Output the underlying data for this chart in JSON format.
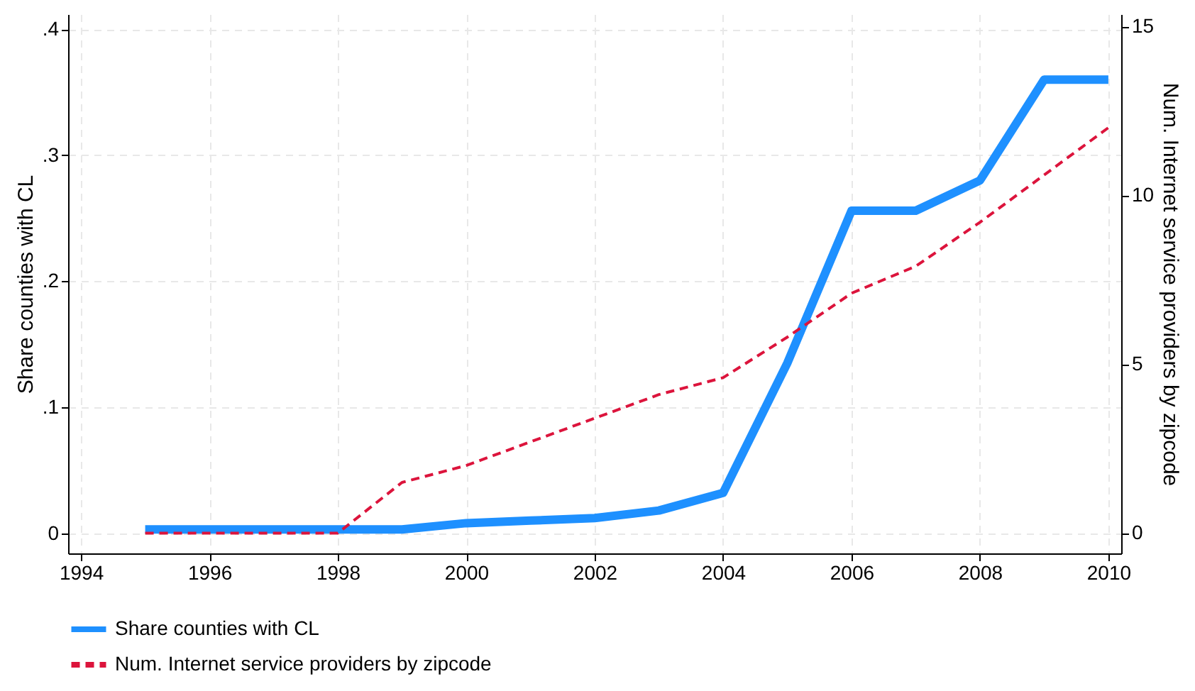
{
  "chart_data": {
    "type": "line",
    "ylabel": "Share counties with CL",
    "y2label": "Num. Internet service providers by zipcode",
    "x": [
      1995,
      1996,
      1997,
      1998,
      1999,
      2000,
      2001,
      2002,
      2003,
      2004,
      2005,
      2006,
      2007,
      2008,
      2009,
      2010
    ],
    "series": [
      {
        "name": "Share counties with CL",
        "color": "#1e90ff",
        "line_style": "solid",
        "values": [
          0.003,
          0.003,
          0.003,
          0.003,
          0.003,
          0.008,
          0.01,
          0.012,
          0.018,
          0.032,
          0.135,
          0.256,
          0.256,
          0.28,
          0.36,
          0.36
        ]
      },
      {
        "name": "Num. Internet service providers by zipcode",
        "color": "#dc143c",
        "line_style": "dashed",
        "axis": "y2",
        "values": [
          0,
          0,
          0,
          0,
          1.5,
          2,
          2.7,
          3.4,
          4.1,
          4.6,
          5.8,
          7.1,
          7.9,
          9.2,
          10.6,
          12
        ]
      }
    ],
    "xlim": [
      1993.8,
      2010.2
    ],
    "xticks": [
      1994,
      1996,
      1998,
      2000,
      2002,
      2004,
      2006,
      2008,
      2010
    ],
    "ylim": [
      -0.016,
      0.412
    ],
    "yticks": [
      {
        "value": 0,
        "label": "0"
      },
      {
        "value": 0.1,
        "label": ".1"
      },
      {
        "value": 0.2,
        "label": ".2"
      },
      {
        "value": 0.3,
        "label": ".3"
      },
      {
        "value": 0.4,
        "label": ".4"
      }
    ],
    "y2lim": [
      -0.6,
      15.36
    ],
    "y2ticks": [
      0,
      5,
      10,
      15
    ],
    "grid": true,
    "legend": "bottom",
    "marker": "none"
  }
}
